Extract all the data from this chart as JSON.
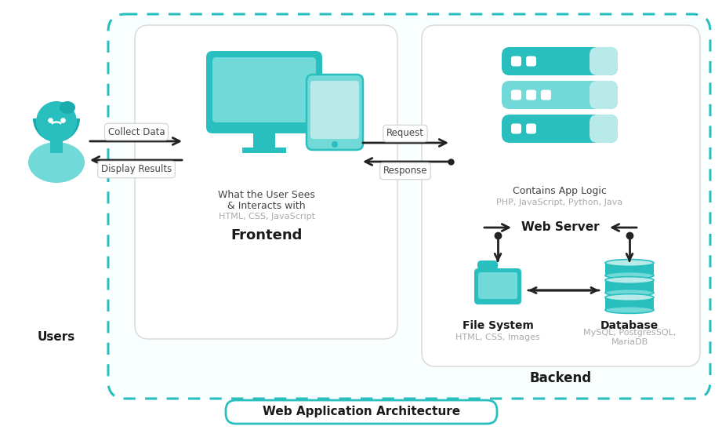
{
  "bg_color": "#ffffff",
  "teal": "#2abfbf",
  "teal_light": "#72d9d9",
  "teal_pale": "#b8eaea",
  "teal_very_light": "#dff5f5",
  "border_dashed": "#2abfbf",
  "arrow_color": "#222222",
  "gray_text": "#aaaaaa",
  "dark_text": "#444444",
  "bold_text": "#1a1a1a",
  "title": "Web Application Architecture",
  "backend_label": "Backend",
  "frontend_label": "Frontend",
  "users_label": "Users",
  "webserver_label": "Web Server",
  "filesystem_label": "File System",
  "database_label": "Database",
  "frontend_desc1": "What the User Sees",
  "frontend_desc2": "& Interacts with",
  "frontend_tech": "HTML, CSS, JavaScript",
  "backend_desc": "Contains App Logic",
  "backend_tech": "PHP, JavaScript, Python, Java",
  "filesystem_tech": "HTML, CSS, Images",
  "database_tech": "MySQL, PostgresSQL,\nMariaDB",
  "collect_data": "Collect Data",
  "display_results": "Display Results",
  "request": "Request",
  "response": "Response"
}
